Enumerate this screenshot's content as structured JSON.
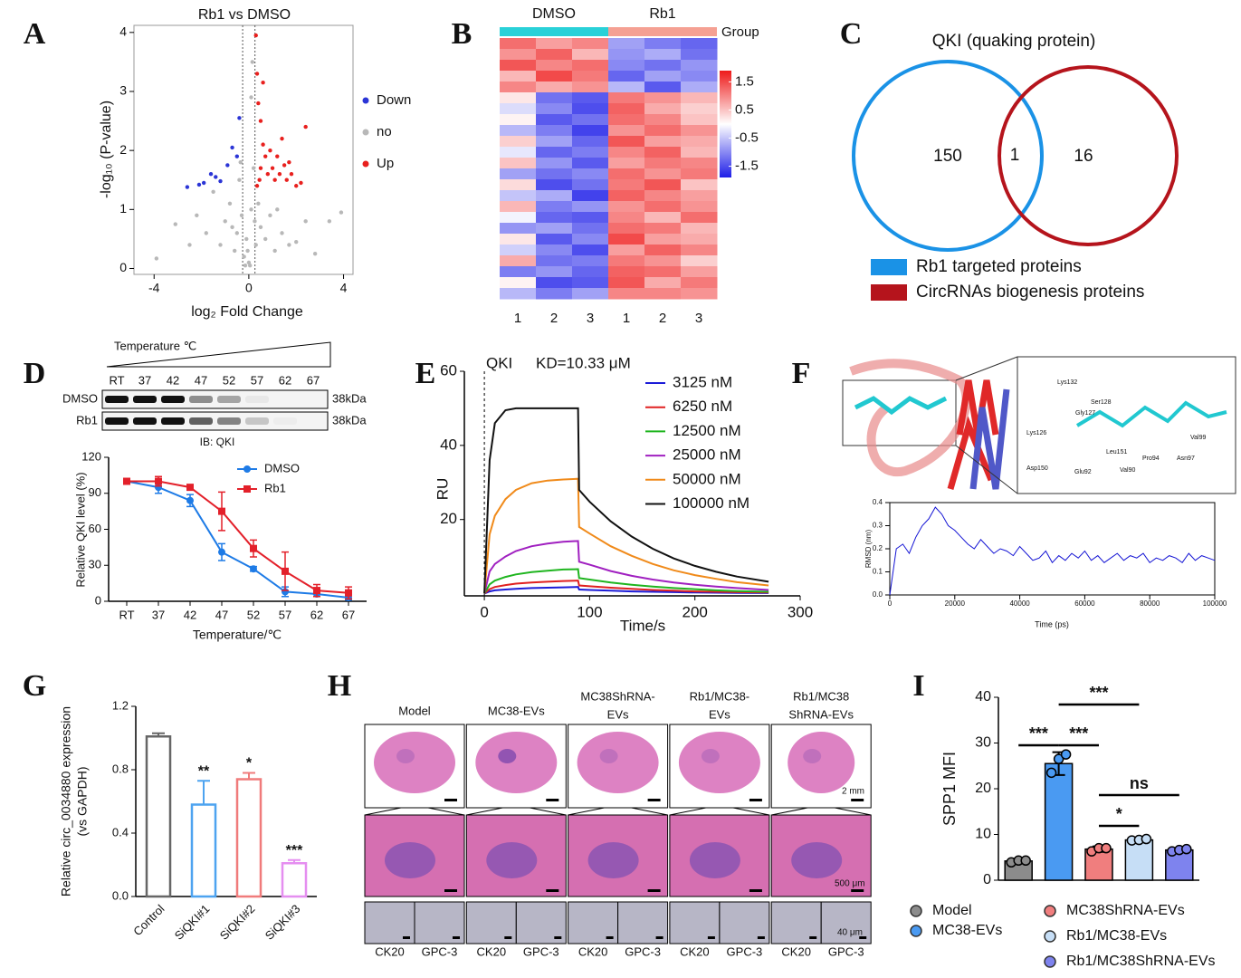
{
  "chart_data": [
    {
      "panel": "A",
      "type": "scatter",
      "title": "Rb1 vs DMSO",
      "x_label": "log₂ Fold Change",
      "y_label": "-log₁₀ (P-value)",
      "xlim": [
        -4.85,
        4.4
      ],
      "ylim": [
        -0.1,
        4.12
      ],
      "xticks": [
        -4,
        0,
        4
      ],
      "yticks": [
        0,
        1,
        2,
        3,
        4
      ],
      "threshold_lines": [
        -0.26,
        0.26
      ],
      "series": [
        {
          "name": "Down",
          "color": "#2b35d6",
          "x": [
            -2.6,
            -2.1,
            -1.9,
            -1.6,
            -1.4,
            -1.2,
            -0.9,
            -0.7,
            -0.5,
            -0.4
          ],
          "y": [
            1.38,
            1.42,
            1.45,
            1.6,
            1.55,
            1.48,
            1.75,
            2.05,
            1.9,
            2.55
          ]
        },
        {
          "name": "no",
          "color": "#b8b8b8",
          "x": [
            -3.9,
            -3.1,
            -2.5,
            -2.2,
            -1.8,
            -1.5,
            -1.2,
            -1.0,
            -0.8,
            -0.6,
            -0.5,
            -0.4,
            -0.3,
            -0.2,
            -0.1,
            0.0,
            0.05,
            0.1,
            0.15,
            0.2,
            -0.15,
            -0.05,
            0.1,
            0.25,
            0.3,
            0.5,
            0.7,
            0.9,
            1.1,
            1.4,
            1.7,
            2.0,
            2.4,
            2.8,
            3.4,
            3.9,
            -0.7,
            1.2,
            0.4,
            -0.35
          ],
          "y": [
            0.17,
            0.75,
            0.4,
            0.9,
            0.6,
            1.3,
            0.4,
            0.8,
            1.1,
            0.3,
            0.6,
            1.5,
            0.9,
            0.2,
            0.5,
            0.1,
            0.05,
            2.9,
            3.5,
            1.7,
            0.05,
            0.3,
            1.0,
            0.8,
            0.4,
            0.7,
            0.5,
            0.9,
            0.3,
            0.6,
            0.4,
            0.45,
            0.8,
            0.25,
            0.8,
            0.95,
            0.7,
            1.0,
            1.1,
            1.8
          ]
        },
        {
          "name": "Up",
          "color": "#e8201e",
          "x": [
            0.3,
            0.35,
            0.4,
            0.5,
            0.6,
            0.7,
            0.8,
            0.9,
            1.0,
            1.1,
            1.2,
            1.3,
            1.4,
            1.5,
            1.6,
            1.7,
            1.8,
            2.0,
            2.2,
            2.4,
            0.35,
            0.45,
            0.5,
            0.6
          ],
          "y": [
            3.95,
            3.3,
            2.8,
            2.5,
            2.1,
            1.9,
            1.6,
            2.0,
            1.7,
            1.5,
            1.9,
            1.6,
            2.2,
            1.75,
            1.5,
            1.8,
            1.6,
            1.4,
            1.45,
            2.4,
            1.4,
            1.5,
            1.7,
            3.15
          ]
        }
      ]
    },
    {
      "panel": "B",
      "type": "heatmap",
      "group_label": "Group",
      "groups": [
        {
          "name": "DMSO",
          "color": "#29d1d8",
          "columns": [
            "1",
            "2",
            "3"
          ]
        },
        {
          "name": "Rb1",
          "color": "#f5a093",
          "columns": [
            "1",
            "2",
            "3"
          ]
        }
      ],
      "values": [
        [
          1.2,
          0.8,
          1.0,
          -0.8,
          -1.1,
          -1.3
        ],
        [
          0.9,
          1.3,
          0.6,
          -0.9,
          -0.7,
          -1.2
        ],
        [
          1.4,
          1.0,
          1.2,
          -1.0,
          -1.2,
          -0.9
        ],
        [
          0.6,
          1.5,
          1.1,
          -1.3,
          -0.8,
          -1.0
        ],
        [
          1.0,
          0.7,
          0.9,
          -0.6,
          -1.4,
          -0.7
        ],
        [
          0.2,
          -1.2,
          -1.4,
          1.1,
          0.9,
          0.6
        ],
        [
          -0.3,
          -1.0,
          -1.5,
          1.3,
          0.7,
          0.4
        ],
        [
          0.1,
          -1.4,
          -1.2,
          1.2,
          1.0,
          0.5
        ],
        [
          -0.6,
          -1.1,
          -1.6,
          0.9,
          1.2,
          0.9
        ],
        [
          0.4,
          -0.8,
          -1.3,
          1.4,
          0.8,
          0.7
        ],
        [
          -0.2,
          -1.3,
          -1.1,
          1.0,
          1.3,
          0.6
        ],
        [
          0.5,
          -0.9,
          -1.4,
          0.8,
          1.1,
          1.0
        ],
        [
          -0.8,
          -1.2,
          -1.0,
          1.2,
          0.9,
          1.1
        ],
        [
          0.3,
          -1.5,
          -1.2,
          1.1,
          1.4,
          0.5
        ],
        [
          -0.5,
          -0.7,
          -1.6,
          1.3,
          1.0,
          0.8
        ],
        [
          0.6,
          -1.1,
          -0.9,
          0.9,
          1.2,
          0.9
        ],
        [
          -0.1,
          -1.3,
          -1.4,
          1.0,
          0.6,
          1.2
        ],
        [
          -0.9,
          -0.8,
          -1.2,
          1.2,
          1.1,
          0.6
        ],
        [
          0.2,
          -1.4,
          -1.0,
          1.5,
          0.8,
          0.7
        ],
        [
          -0.4,
          -1.0,
          -1.5,
          0.8,
          1.3,
          1.0
        ],
        [
          0.7,
          -1.2,
          -1.1,
          1.1,
          0.9,
          0.4
        ],
        [
          -1.1,
          -0.9,
          -1.3,
          1.3,
          1.2,
          0.8
        ],
        [
          0.1,
          -1.5,
          -1.4,
          1.4,
          0.7,
          1.1
        ],
        [
          -0.6,
          -1.1,
          -0.8,
          1.0,
          1.0,
          0.9
        ]
      ],
      "color_range": [
        -1.9,
        1.9
      ],
      "colors": [
        "#1f1fe8",
        "#ffffff",
        "#ee1a1a"
      ],
      "colorbar_ticks": [
        1.5,
        0.5,
        -0.5,
        -1.5
      ]
    },
    {
      "panel": "C",
      "type": "venn",
      "title": "QKI (quaking protein)",
      "sets": [
        {
          "name": "Rb1 targeted proteins",
          "color": "#1a92e6",
          "count": 150
        },
        {
          "name": "CircRNAs biogenesis proteins",
          "color": "#b5141c",
          "count": 16
        }
      ],
      "overlap": 1
    },
    {
      "panel": "D",
      "type": "blot",
      "header": "Temperature ℃",
      "lanes": [
        "RT",
        "37",
        "42",
        "47",
        "52",
        "57",
        "62",
        "67"
      ],
      "rows": [
        {
          "name": "DMSO",
          "size": "38kDa",
          "band_intensity": [
            1,
            1,
            1,
            0.45,
            0.35,
            0.05,
            0,
            0
          ]
        },
        {
          "name": "Rb1",
          "size": "38kDa",
          "band_intensity": [
            1,
            1,
            1,
            0.65,
            0.5,
            0.2,
            0.03,
            0
          ]
        }
      ],
      "caption": "IB: QKI"
    },
    {
      "type": "line",
      "x_label": "Temperature/℃",
      "y_label": "Relative  QKI level (%)",
      "categories": [
        "RT",
        "37",
        "42",
        "47",
        "52",
        "57",
        "62",
        "67"
      ],
      "ylim": [
        0,
        120
      ],
      "yticks": [
        0,
        30,
        60,
        90,
        120
      ],
      "series": [
        {
          "name": "DMSO",
          "color": "#1e7be6",
          "marker": "circle",
          "values": [
            100,
            95,
            84,
            41,
            27,
            8,
            6,
            3
          ],
          "errors": [
            2,
            5,
            5,
            7,
            2,
            4,
            2,
            2
          ]
        },
        {
          "name": "Rb1",
          "color": "#e3202a",
          "marker": "square",
          "values": [
            100,
            100,
            95,
            75,
            44,
            25,
            9,
            7
          ],
          "errors": [
            2,
            4,
            2,
            16,
            7,
            16,
            5,
            5
          ]
        }
      ]
    },
    {
      "panel": "E",
      "type": "line",
      "title": "QKI",
      "annotation": "KD=10.33 μM",
      "x_label": "Time/s",
      "y_label": "RU",
      "xlim": [
        -19,
        300
      ],
      "ylim": [
        -0.6,
        60
      ],
      "xticks": [
        0,
        100,
        200,
        300
      ],
      "yticks": [
        20,
        40,
        60
      ],
      "x": [
        0,
        5,
        10,
        20,
        30,
        45,
        60,
        75,
        89,
        90,
        100,
        120,
        140,
        160,
        180,
        200,
        220,
        240,
        270
      ],
      "series": [
        {
          "name": "3125 nM",
          "color": "#1c1cd8",
          "values": [
            0,
            0.6,
            0.9,
            1.1,
            1.3,
            1.5,
            1.6,
            1.7,
            1.8,
            1.1,
            1,
            0.8,
            0.6,
            0.5,
            0.4,
            0.3,
            0.25,
            0.2,
            0.15
          ]
        },
        {
          "name": "6250 nM",
          "color": "#e02020",
          "values": [
            0,
            1.2,
            1.8,
            2.3,
            2.7,
            3,
            3.2,
            3.4,
            3.5,
            2.2,
            2,
            1.6,
            1.3,
            1,
            0.8,
            0.6,
            0.5,
            0.4,
            0.3
          ]
        },
        {
          "name": "12500 nM",
          "color": "#1fb51f",
          "values": [
            0,
            2.5,
            3.5,
            4.5,
            5.2,
            5.8,
            6.2,
            6.5,
            6.6,
            4.2,
            3.8,
            3,
            2.4,
            1.9,
            1.5,
            1.2,
            0.9,
            0.7,
            0.5
          ]
        },
        {
          "name": "25000 nM",
          "color": "#a020c0",
          "values": [
            0,
            6,
            8,
            10,
            11.5,
            12.8,
            13.5,
            14,
            14.2,
            8.6,
            7.8,
            6.1,
            4.8,
            3.8,
            3,
            2.4,
            1.9,
            1.5,
            1
          ]
        },
        {
          "name": "50000 nM",
          "color": "#f08a1a",
          "values": [
            0,
            16,
            21,
            25.5,
            28,
            29.8,
            30.5,
            30.8,
            31,
            18,
            16.2,
            12.8,
            10.2,
            8,
            6.3,
            5,
            4,
            3.1,
            2.2
          ]
        },
        {
          "name": "100000 nM",
          "color": "#111111",
          "values": [
            0,
            36,
            46,
            49.5,
            50,
            50,
            50,
            50,
            50,
            28,
            24.8,
            19.5,
            15.4,
            12.1,
            9.5,
            7.5,
            5.9,
            4.6,
            3.2
          ]
        }
      ]
    },
    {
      "panel": "F",
      "type": "image",
      "residues": [
        "Lys132",
        "Ser128",
        "Gly127",
        "Lys126",
        "Leu151",
        "Val99",
        "Pro94",
        "Asn97",
        "Asp150",
        "Glu92",
        "Val90"
      ]
    },
    {
      "type": "line",
      "x_label": "Time (ps)",
      "y_label": "RMSD (nm)",
      "xlim": [
        0,
        100000
      ],
      "ylim": [
        0,
        0.4
      ],
      "xticks": [
        0,
        20000,
        40000,
        60000,
        80000,
        100000
      ],
      "yticks": [
        {
          "value": 0,
          "label": "0.0"
        },
        0.1,
        0.2,
        0.3,
        0.4
      ],
      "frame": true,
      "x": [
        0,
        2000,
        4000,
        6000,
        8000,
        10000,
        12000,
        14000,
        16000,
        18000,
        20000,
        22000,
        24000,
        26000,
        28000,
        30000,
        32000,
        34000,
        36000,
        38000,
        40000,
        42000,
        44000,
        46000,
        48000,
        50000,
        52000,
        54000,
        56000,
        58000,
        60000,
        62000,
        64000,
        66000,
        68000,
        70000,
        72000,
        74000,
        76000,
        78000,
        80000,
        82000,
        84000,
        86000,
        88000,
        90000,
        92000,
        94000,
        96000,
        98000,
        100000
      ],
      "series": [
        {
          "color": "#1414d4",
          "values": [
            0.0,
            0.2,
            0.22,
            0.18,
            0.25,
            0.3,
            0.33,
            0.38,
            0.35,
            0.3,
            0.28,
            0.25,
            0.22,
            0.2,
            0.24,
            0.21,
            0.18,
            0.2,
            0.19,
            0.17,
            0.21,
            0.18,
            0.15,
            0.16,
            0.19,
            0.14,
            0.17,
            0.15,
            0.18,
            0.16,
            0.19,
            0.15,
            0.17,
            0.14,
            0.16,
            0.18,
            0.15,
            0.17,
            0.16,
            0.18,
            0.14,
            0.16,
            0.15,
            0.17,
            0.16,
            0.14,
            0.18,
            0.15,
            0.17,
            0.16,
            0.15
          ]
        }
      ]
    },
    {
      "panel": "G",
      "type": "bar",
      "y_label": [
        "Relative circ_0034880 expression",
        "(vs GAPDH)"
      ],
      "categories": [
        "Control",
        "SiQKI#1",
        "SiQKI#2",
        "SiQKI#3"
      ],
      "values": [
        1.01,
        0.58,
        0.74,
        0.21
      ],
      "errors": [
        0.02,
        0.15,
        0.04,
        0.02
      ],
      "colors": [
        "#666666",
        "#4da3f0",
        "#f07b7b",
        "#e58ef0"
      ],
      "significance": [
        null,
        "**",
        "*",
        "***"
      ],
      "ylim": [
        0,
        1.2
      ],
      "yticks": [
        {
          "value": 0,
          "label": "0.0"
        },
        0.4,
        0.8,
        1.2
      ],
      "fill": false
    },
    {
      "panel": "H",
      "type": "image",
      "columns": [
        {
          "label": [
            "Model"
          ]
        },
        {
          "label": [
            "MC38-EVs"
          ]
        },
        {
          "label": [
            "MC38ShRNA-",
            "EVs"
          ]
        },
        {
          "label": [
            "Rb1/MC38-",
            "EVs"
          ]
        },
        {
          "label": [
            "Rb1/MC38",
            "ShRNA-EVs"
          ]
        }
      ],
      "scale_bars": [
        "2 mm",
        "500 μm",
        "40 μm"
      ],
      "stains": [
        "CK20",
        "GPC-3"
      ]
    },
    {
      "panel": "I",
      "type": "bar",
      "y_label": "SPP1 MFI",
      "categories": [
        "Model",
        "MC38-EVs",
        "MC38ShRNA-EVs",
        "Rb1/MC38-EVs",
        "Rb1/MC38ShRNA-EVs"
      ],
      "values": [
        4.2,
        25.5,
        6.8,
        8.8,
        6.6
      ],
      "errors": [
        0.5,
        2.5,
        0.6,
        0.2,
        0.4
      ],
      "points": [
        [
          3.9,
          4.3,
          4.3
        ],
        [
          23.5,
          26.5,
          27.5
        ],
        [
          6.3,
          7,
          7
        ],
        [
          8.7,
          8.8,
          9
        ],
        [
          6.3,
          6.6,
          6.8
        ]
      ],
      "colors": [
        "#8c8c8c",
        "#4a9af2",
        "#f07e7e",
        "#c6def6",
        "#7e83ee"
      ],
      "comparisons": [
        {
          "pair": [
            0,
            1
          ],
          "label": "***"
        },
        {
          "pair": [
            1,
            3
          ],
          "label": "***"
        },
        {
          "pair": [
            1,
            2
          ],
          "label": "***"
        },
        {
          "pair": [
            2,
            4
          ],
          "label": "ns"
        },
        {
          "pair": [
            2,
            3
          ],
          "label": "*"
        }
      ],
      "ylim": [
        0,
        40
      ],
      "yticks": [
        0,
        10,
        20,
        30,
        40
      ],
      "fill": true
    }
  ]
}
